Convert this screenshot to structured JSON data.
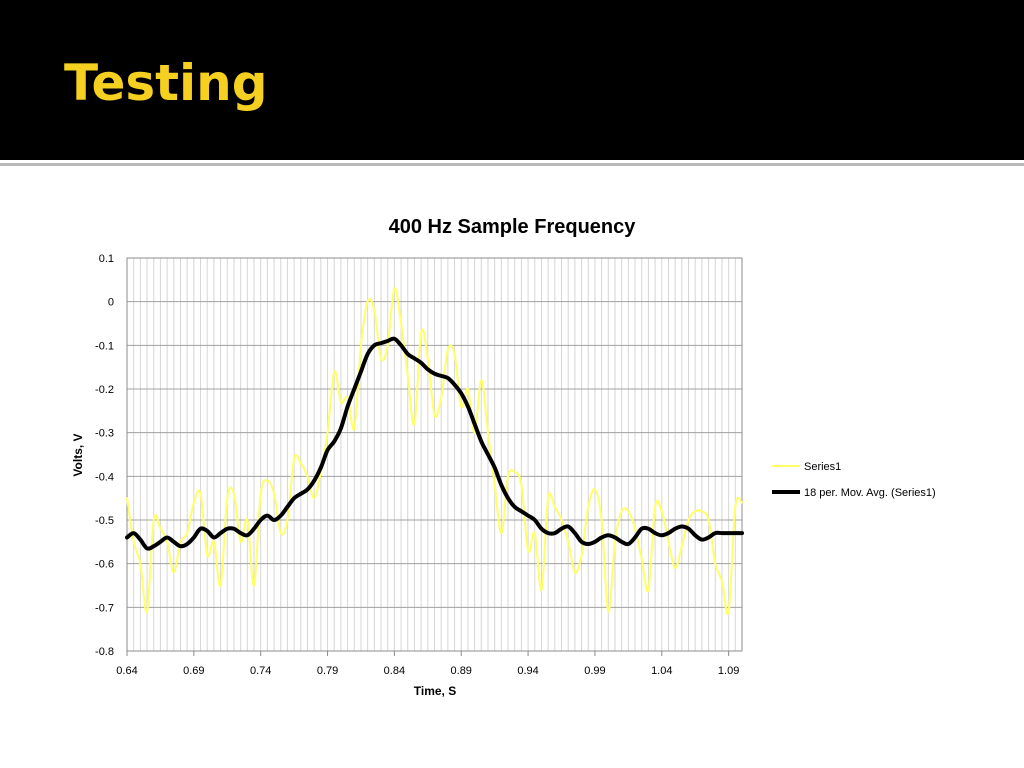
{
  "slide": {
    "title": "Testing",
    "title_color": "#f5d020",
    "header_bg": "#000000"
  },
  "chart_data": {
    "type": "line",
    "title": "400 Hz Sample Frequency",
    "xlabel": "Time, S",
    "ylabel": "Volts, V",
    "xlim": [
      0.64,
      1.1
    ],
    "ylim": [
      -0.8,
      0.1
    ],
    "xticks": [
      "0.64",
      "0.69",
      "0.74",
      "0.79",
      "0.84",
      "0.89",
      "0.94",
      "0.99",
      "1.04",
      "1.09"
    ],
    "yticks": [
      "0.1",
      "0",
      "-0.1",
      "-0.2",
      "-0.3",
      "-0.4",
      "-0.5",
      "-0.6",
      "-0.7",
      "-0.8"
    ],
    "grid": true,
    "legend_position": "right",
    "series": [
      {
        "name": "Series1",
        "color": "#ffff66",
        "x": [
          0.64,
          0.645,
          0.65,
          0.655,
          0.66,
          0.665,
          0.67,
          0.675,
          0.68,
          0.685,
          0.69,
          0.695,
          0.7,
          0.705,
          0.71,
          0.715,
          0.72,
          0.725,
          0.73,
          0.735,
          0.74,
          0.745,
          0.75,
          0.755,
          0.76,
          0.765,
          0.77,
          0.775,
          0.78,
          0.785,
          0.79,
          0.795,
          0.8,
          0.805,
          0.81,
          0.815,
          0.82,
          0.825,
          0.83,
          0.835,
          0.84,
          0.845,
          0.85,
          0.855,
          0.86,
          0.865,
          0.87,
          0.875,
          0.88,
          0.885,
          0.89,
          0.895,
          0.9,
          0.905,
          0.91,
          0.915,
          0.92,
          0.925,
          0.93,
          0.935,
          0.94,
          0.945,
          0.95,
          0.955,
          0.96,
          0.965,
          0.97,
          0.975,
          0.98,
          0.985,
          0.99,
          0.995,
          1.0,
          1.005,
          1.01,
          1.015,
          1.02,
          1.025,
          1.03,
          1.035,
          1.04,
          1.045,
          1.05,
          1.055,
          1.06,
          1.065,
          1.07,
          1.075,
          1.08,
          1.085,
          1.09,
          1.095,
          1.1
        ],
        "values": [
          -0.45,
          -0.55,
          -0.6,
          -0.71,
          -0.5,
          -0.52,
          -0.55,
          -0.62,
          -0.55,
          -0.53,
          -0.46,
          -0.44,
          -0.58,
          -0.55,
          -0.65,
          -0.45,
          -0.44,
          -0.55,
          -0.5,
          -0.65,
          -0.44,
          -0.41,
          -0.44,
          -0.53,
          -0.5,
          -0.36,
          -0.37,
          -0.4,
          -0.45,
          -0.39,
          -0.3,
          -0.16,
          -0.23,
          -0.22,
          -0.29,
          -0.1,
          0.0,
          -0.02,
          -0.13,
          -0.1,
          0.03,
          -0.05,
          -0.17,
          -0.28,
          -0.07,
          -0.13,
          -0.26,
          -0.22,
          -0.11,
          -0.12,
          -0.24,
          -0.2,
          -0.3,
          -0.18,
          -0.3,
          -0.42,
          -0.53,
          -0.4,
          -0.39,
          -0.42,
          -0.57,
          -0.53,
          -0.66,
          -0.45,
          -0.47,
          -0.5,
          -0.55,
          -0.62,
          -0.58,
          -0.47,
          -0.43,
          -0.5,
          -0.71,
          -0.55,
          -0.48,
          -0.48,
          -0.52,
          -0.59,
          -0.66,
          -0.47,
          -0.48,
          -0.55,
          -0.61,
          -0.56,
          -0.5,
          -0.48,
          -0.48,
          -0.5,
          -0.6,
          -0.64,
          -0.71,
          -0.47,
          -0.46
        ],
        "line_width": 2
      },
      {
        "name": "18 per. Mov. Avg. (Series1)",
        "color": "#000000",
        "x": [
          0.64,
          0.645,
          0.65,
          0.655,
          0.66,
          0.665,
          0.67,
          0.675,
          0.68,
          0.685,
          0.69,
          0.695,
          0.7,
          0.705,
          0.71,
          0.715,
          0.72,
          0.725,
          0.73,
          0.735,
          0.74,
          0.745,
          0.75,
          0.755,
          0.76,
          0.765,
          0.77,
          0.775,
          0.78,
          0.785,
          0.79,
          0.795,
          0.8,
          0.805,
          0.81,
          0.815,
          0.82,
          0.825,
          0.83,
          0.835,
          0.84,
          0.845,
          0.85,
          0.855,
          0.86,
          0.865,
          0.87,
          0.875,
          0.88,
          0.885,
          0.89,
          0.895,
          0.9,
          0.905,
          0.91,
          0.915,
          0.92,
          0.925,
          0.93,
          0.935,
          0.94,
          0.945,
          0.95,
          0.955,
          0.96,
          0.965,
          0.97,
          0.975,
          0.98,
          0.985,
          0.99,
          0.995,
          1.0,
          1.005,
          1.01,
          1.015,
          1.02,
          1.025,
          1.03,
          1.035,
          1.04,
          1.045,
          1.05,
          1.055,
          1.06,
          1.065,
          1.07,
          1.075,
          1.08,
          1.085,
          1.09,
          1.095,
          1.1
        ],
        "values": [
          -0.54,
          -0.53,
          -0.545,
          -0.565,
          -0.56,
          -0.55,
          -0.54,
          -0.55,
          -0.56,
          -0.555,
          -0.54,
          -0.52,
          -0.525,
          -0.54,
          -0.53,
          -0.52,
          -0.52,
          -0.53,
          -0.535,
          -0.52,
          -0.5,
          -0.49,
          -0.5,
          -0.49,
          -0.47,
          -0.45,
          -0.44,
          -0.43,
          -0.41,
          -0.38,
          -0.34,
          -0.32,
          -0.29,
          -0.24,
          -0.2,
          -0.16,
          -0.12,
          -0.1,
          -0.095,
          -0.09,
          -0.085,
          -0.1,
          -0.12,
          -0.13,
          -0.14,
          -0.155,
          -0.165,
          -0.17,
          -0.175,
          -0.19,
          -0.21,
          -0.24,
          -0.28,
          -0.32,
          -0.35,
          -0.38,
          -0.42,
          -0.45,
          -0.47,
          -0.48,
          -0.49,
          -0.5,
          -0.52,
          -0.53,
          -0.53,
          -0.52,
          -0.515,
          -0.53,
          -0.55,
          -0.555,
          -0.55,
          -0.54,
          -0.535,
          -0.54,
          -0.55,
          -0.555,
          -0.54,
          -0.52,
          -0.52,
          -0.53,
          -0.535,
          -0.53,
          -0.52,
          -0.515,
          -0.52,
          -0.535,
          -0.545,
          -0.54,
          -0.53,
          -0.53,
          -0.53,
          -0.53,
          -0.53
        ],
        "line_width": 4
      }
    ]
  }
}
